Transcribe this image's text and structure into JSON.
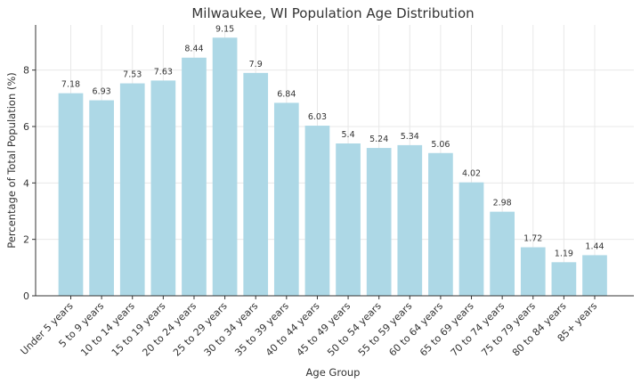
{
  "chart_data": {
    "type": "bar",
    "title": "Milwaukee, WI Population Age Distribution",
    "xlabel": "Age Group",
    "ylabel": "Percentage of Total Population (%)",
    "categories": [
      "Under 5 years",
      "5 to 9 years",
      "10 to 14 years",
      "15 to 19 years",
      "20 to 24 years",
      "25 to 29 years",
      "30 to 34 years",
      "35 to 39 years",
      "40 to 44 years",
      "45 to 49 years",
      "50 to 54 years",
      "55 to 59 years",
      "60 to 64 years",
      "65 to 69 years",
      "70 to 74 years",
      "75 to 79 years",
      "80 to 84 years",
      "85+ years"
    ],
    "values": [
      7.18,
      6.93,
      7.53,
      7.63,
      8.44,
      9.15,
      7.9,
      6.84,
      6.03,
      5.4,
      5.24,
      5.34,
      5.06,
      4.02,
      2.98,
      1.72,
      1.19,
      1.44
    ],
    "data_labels": [
      "7.18",
      "6.93",
      "7.53",
      "7.63",
      "8.44",
      "9.15",
      "7.9",
      "6.84",
      "6.03",
      "5.4",
      "5.24",
      "5.34",
      "5.06",
      "4.02",
      "2.98",
      "1.72",
      "1.19",
      "1.44"
    ],
    "yticks": [
      0,
      2,
      4,
      6,
      8
    ],
    "ylim": [
      0,
      9.6
    ],
    "grid": true,
    "bar_color": "#add8e6"
  }
}
